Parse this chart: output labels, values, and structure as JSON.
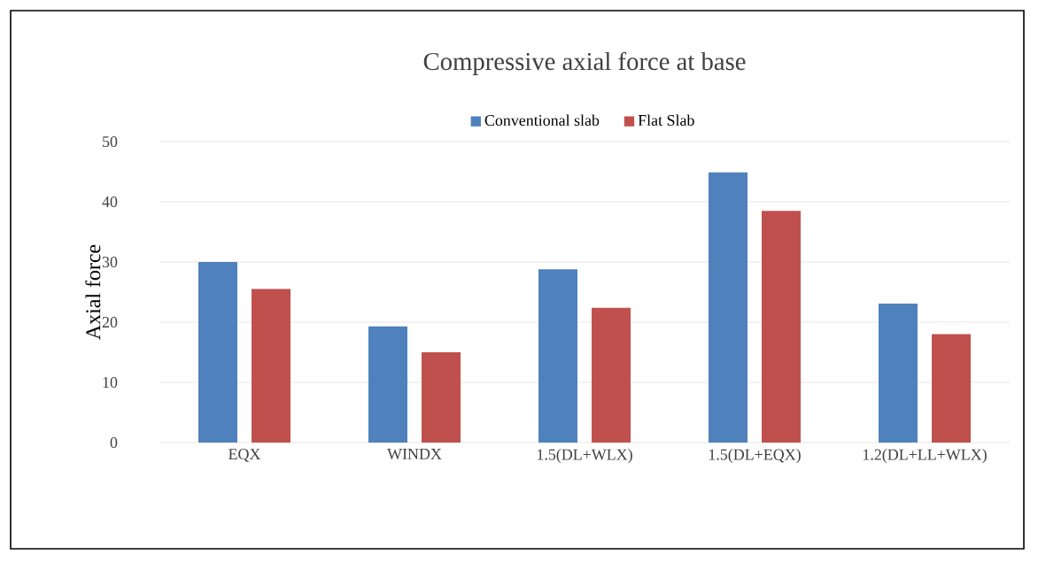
{
  "chart_data": {
    "type": "bar",
    "title": "Compressive axial force at base",
    "ylabel": "Axial   force",
    "categories": [
      "EQX",
      "WINDX",
      "1.5(DL+WLX)",
      "1.5(DL+EQX)",
      "1.2(DL+LL+WLX)"
    ],
    "series": [
      {
        "name": "Conventional slab",
        "color": "#4f81bd",
        "values": [
          30,
          19.3,
          28.8,
          44.9,
          23.1
        ]
      },
      {
        "name": "Flat Slab",
        "color": "#c0504d",
        "values": [
          25.5,
          15,
          22.4,
          38.5,
          18
        ]
      }
    ],
    "ylim": [
      0,
      50
    ],
    "yticks": [
      0,
      10,
      20,
      30,
      40,
      50
    ],
    "grid": "y",
    "legend": "top"
  }
}
